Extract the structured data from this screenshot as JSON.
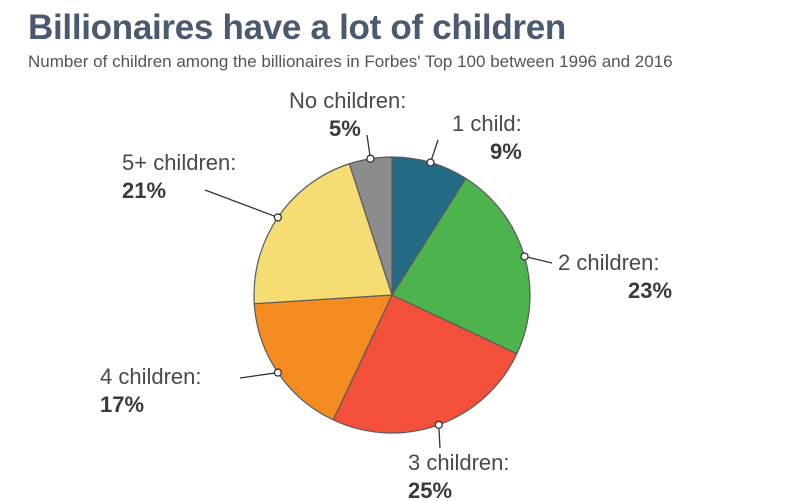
{
  "title": "Billionaires have a lot of children",
  "subtitle": "Number of children among the billionaires in Forbes' Top 100 between 1996 and 2016",
  "chart_data": {
    "type": "pie",
    "slices": [
      {
        "label": "1 child:",
        "value": 9,
        "pct_label": "9%",
        "color": "#236a85"
      },
      {
        "label": "2 children:",
        "value": 23,
        "pct_label": "23%",
        "color": "#4db34d"
      },
      {
        "label": "3 children:",
        "value": 25,
        "pct_label": "25%",
        "color": "#f2503b"
      },
      {
        "label": "4 children:",
        "value": 17,
        "pct_label": "17%",
        "color": "#f58c22"
      },
      {
        "label": "5+ children:",
        "value": 21,
        "pct_label": "21%",
        "color": "#f5dc73"
      },
      {
        "label": "No children:",
        "value": 5,
        "pct_label": "5%",
        "color": "#8c8c8c"
      }
    ],
    "start": "12 o'clock",
    "direction": "clockwise"
  }
}
